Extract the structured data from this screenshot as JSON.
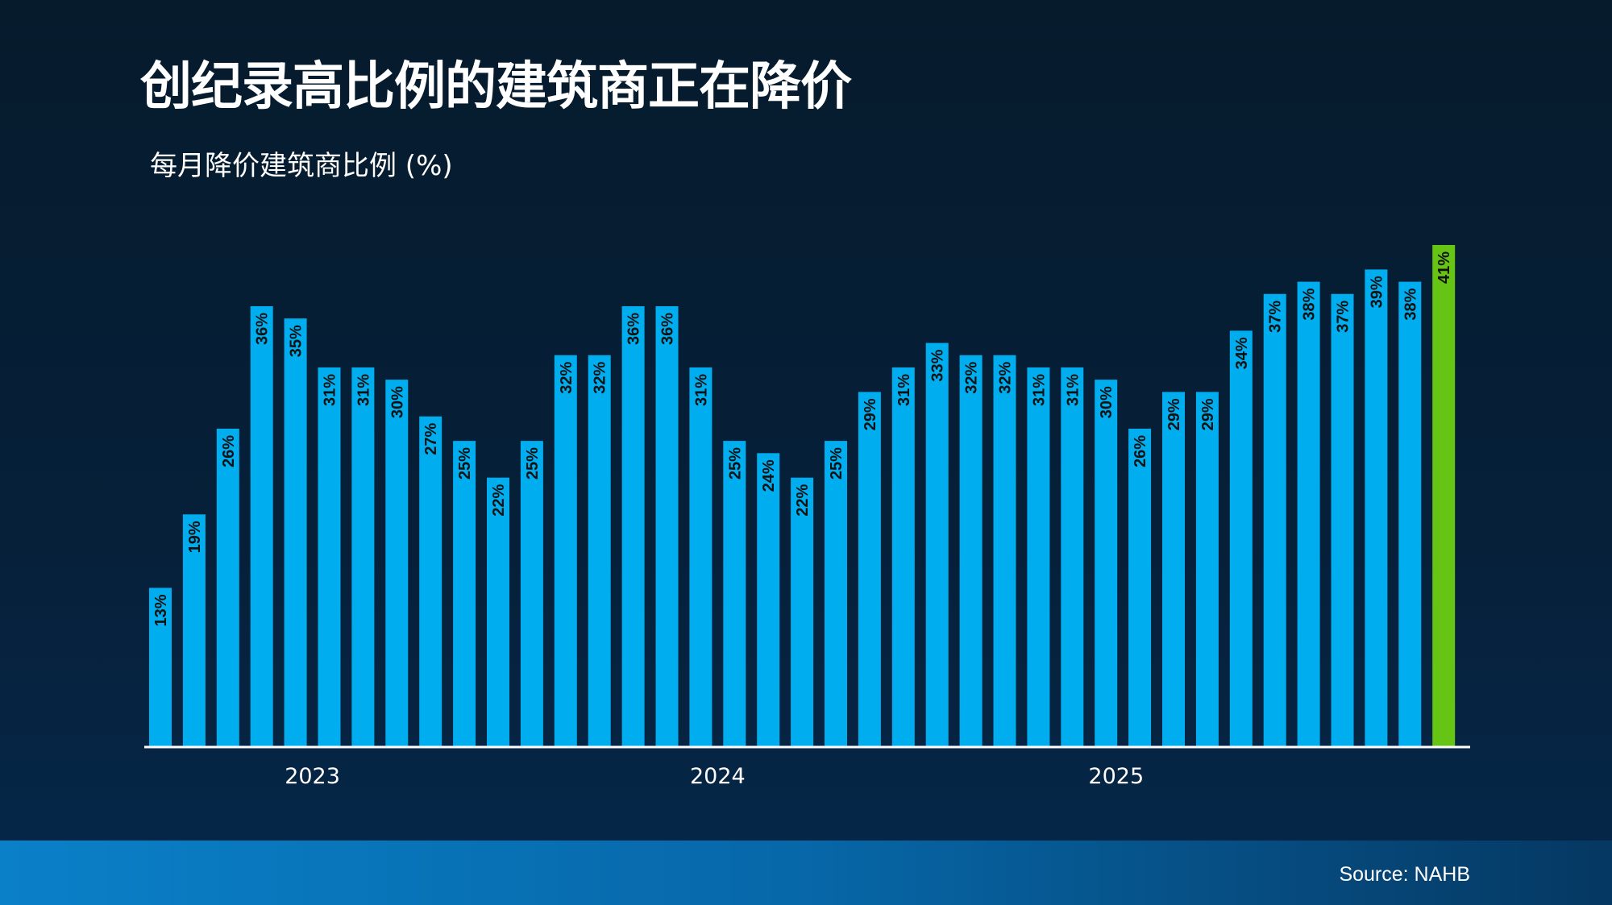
{
  "title": "创纪录高比例的建筑商正在降价",
  "subtitle": "每月降价建筑商比例 (%)",
  "source": "Source: NAHB",
  "colors": {
    "bar": "#00adef",
    "highlight": "#66c414",
    "axis": "#ffffff",
    "label": "#111111"
  },
  "chart_data": {
    "type": "bar",
    "title": "创纪录高比例的建筑商正在降价",
    "ylabel": "每月降价建筑商比例 (%)",
    "xlabel": "",
    "ylim": [
      0,
      41
    ],
    "grid": false,
    "values": [
      13,
      19,
      26,
      36,
      35,
      31,
      31,
      30,
      27,
      25,
      22,
      25,
      32,
      32,
      36,
      36,
      31,
      25,
      24,
      22,
      25,
      29,
      31,
      33,
      32,
      32,
      31,
      31,
      30,
      26,
      29,
      29,
      34,
      37,
      38,
      37,
      39,
      38,
      41
    ],
    "data_labels": [
      "13%",
      "19%",
      "26%",
      "36%",
      "35%",
      "31%",
      "31%",
      "30%",
      "27%",
      "25%",
      "22%",
      "25%",
      "32%",
      "32%",
      "36%",
      "36%",
      "31%",
      "25%",
      "24%",
      "22%",
      "25%",
      "29%",
      "31%",
      "33%",
      "32%",
      "32%",
      "31%",
      "31%",
      "30%",
      "26%",
      "29%",
      "29%",
      "34%",
      "37%",
      "38%",
      "37%",
      "39%",
      "38%",
      "41%"
    ],
    "highlight_index": 38,
    "year_labels": [
      {
        "label": "2023",
        "center_bar": 4.5
      },
      {
        "label": "2024",
        "center_bar": 16.5
      },
      {
        "label": "2025",
        "center_bar": 28.3
      }
    ]
  }
}
